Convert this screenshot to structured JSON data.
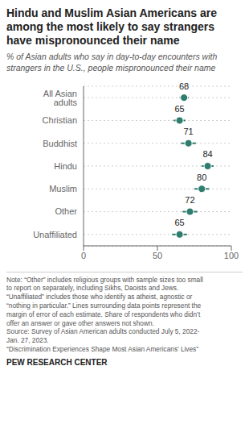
{
  "chart_data": {
    "type": "dot",
    "title": "Hindu and Muslim Asian Americans are\namong the most likely to say strangers\nhave mispronounced their name",
    "subtitle": "% of Asian adults who say in day-to-day encounters with\nstrangers in the U.S., people mispronounced their name",
    "categories": [
      "All Asian adults",
      "Christian",
      "Buddhist",
      "Hindu",
      "Muslim",
      "Other",
      "Unaffiliated"
    ],
    "values": [
      68,
      65,
      71,
      84,
      80,
      72,
      65
    ],
    "errors": [
      3,
      4,
      5,
      4,
      5,
      5,
      5
    ],
    "color": "#2e7d6e",
    "xlim": [
      0,
      100
    ],
    "xticks": [
      0,
      50,
      100
    ],
    "grid": true,
    "data_labels": true,
    "notes": "Note: “Other” includes religious groups with sample sizes too small\nto report on separately, including Sikhs, Daoists and Jews.\n“Unaffiliated” includes those who identify as atheist, agnostic or\n“nothing in particular.” Lines surrounding data points represent the\nmargin of error of each estimate. Share of respondents who didn’t\noffer an answer or gave other answers not shown.\nSource: Survey of Asian American adults conducted July 5, 2022-\nJan. 27, 2023.\n“Discrimination Experiences Shape Most Asian Americans’ Lives”",
    "source": "PEW RESEARCH CENTER"
  }
}
